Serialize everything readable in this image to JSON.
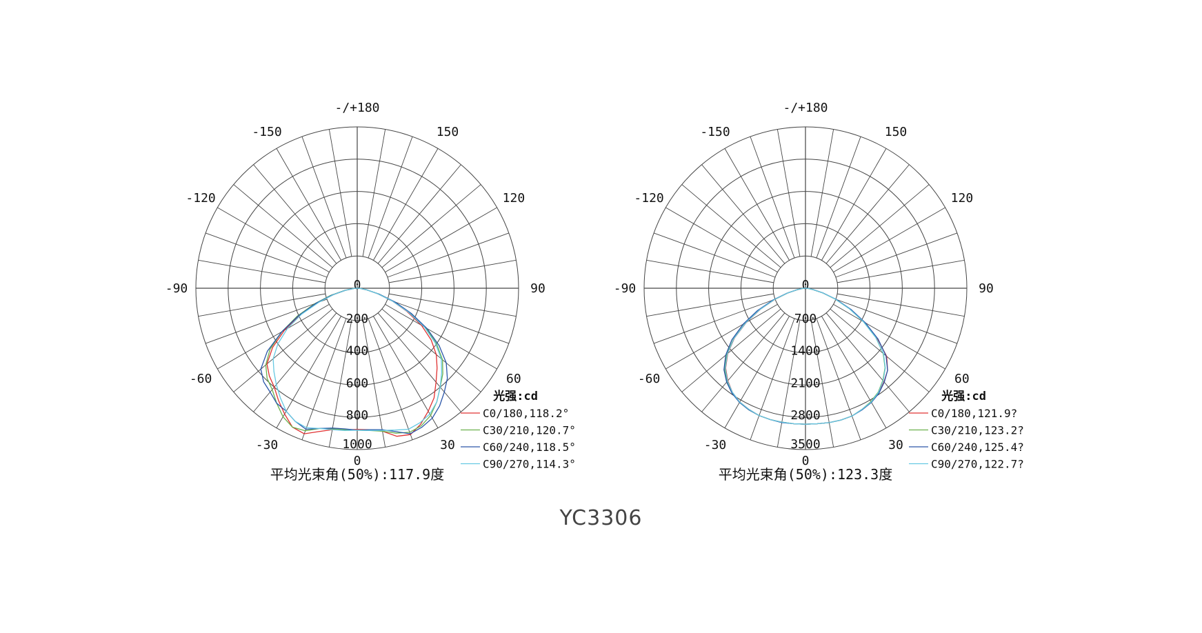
{
  "title": "YC3306",
  "colors": {
    "C0/180": "#e03030",
    "C30/210": "#6ab04c",
    "C60/240": "#2a55a8",
    "C90/270": "#66c8e2",
    "grid": "#444444"
  },
  "chart_data": [
    {
      "type": "polar-line",
      "angle_labels": [
        {
          "angle": 180,
          "text": "-/+180"
        },
        {
          "angle": 150,
          "text": "150"
        },
        {
          "angle": -150,
          "text": "-150"
        },
        {
          "angle": 120,
          "text": "120"
        },
        {
          "angle": -120,
          "text": "-120"
        },
        {
          "angle": 90,
          "text": "90"
        },
        {
          "angle": -90,
          "text": "-90"
        },
        {
          "angle": 60,
          "text": "60"
        },
        {
          "angle": -60,
          "text": "-60"
        },
        {
          "angle": 30,
          "text": "30"
        },
        {
          "angle": -30,
          "text": "-30"
        },
        {
          "angle": 0,
          "text": "0"
        }
      ],
      "angle_grid_step": 10,
      "radial_ticks": [
        200,
        400,
        600,
        800,
        1000
      ],
      "center_label": "0",
      "rmax": 1000,
      "legend_title": "光强:cd",
      "beam_text": "平均光束角(50%):117.9度",
      "gamma": [
        -90,
        -85,
        -80,
        -75,
        -70,
        -65,
        -60,
        -55,
        -50,
        -45,
        -40,
        -35,
        -30,
        -25,
        -20,
        -15,
        -10,
        -5,
        0,
        5,
        10,
        15,
        20,
        25,
        30,
        35,
        40,
        45,
        50,
        55,
        60,
        65,
        70,
        75,
        80,
        85,
        90
      ],
      "series": [
        {
          "name": "C0/180",
          "legend": "C0/180,118.2°",
          "values": [
            0,
            20,
            70,
            150,
            260,
            390,
            520,
            640,
            730,
            770,
            800,
            850,
            900,
            950,
            960,
            920,
            890,
            880,
            875,
            880,
            900,
            950,
            965,
            930,
            880,
            830,
            760,
            700,
            640,
            560,
            460,
            340,
            230,
            130,
            60,
            20,
            0
          ]
        },
        {
          "name": "C30/210",
          "legend": "C30/210,120.7°",
          "values": [
            0,
            25,
            80,
            170,
            280,
            410,
            540,
            660,
            740,
            790,
            820,
            870,
            920,
            950,
            940,
            900,
            885,
            880,
            880,
            885,
            900,
            930,
            950,
            940,
            910,
            860,
            800,
            750,
            690,
            600,
            490,
            360,
            240,
            140,
            60,
            20,
            0
          ]
        },
        {
          "name": "C60/240",
          "legend": "C60/240,118.5°",
          "values": [
            0,
            20,
            75,
            160,
            270,
            400,
            540,
            680,
            780,
            820,
            840,
            870,
            880,
            910,
            930,
            900,
            880,
            875,
            880,
            880,
            890,
            920,
            960,
            950,
            930,
            890,
            840,
            790,
            720,
            620,
            500,
            370,
            250,
            140,
            60,
            20,
            0
          ]
        },
        {
          "name": "C90/270",
          "legend": "C90/270,114.3°",
          "values": [
            0,
            20,
            70,
            150,
            250,
            380,
            500,
            600,
            680,
            730,
            780,
            830,
            880,
            910,
            920,
            900,
            890,
            885,
            880,
            885,
            895,
            910,
            930,
            920,
            900,
            860,
            800,
            740,
            680,
            590,
            480,
            350,
            230,
            130,
            60,
            20,
            0
          ]
        }
      ]
    },
    {
      "type": "polar-line",
      "angle_labels": [
        {
          "angle": 180,
          "text": "-/+180"
        },
        {
          "angle": 150,
          "text": "150"
        },
        {
          "angle": -150,
          "text": "-150"
        },
        {
          "angle": 120,
          "text": "120"
        },
        {
          "angle": -120,
          "text": "-120"
        },
        {
          "angle": 90,
          "text": "90"
        },
        {
          "angle": -90,
          "text": "-90"
        },
        {
          "angle": 60,
          "text": "60"
        },
        {
          "angle": -60,
          "text": "-60"
        },
        {
          "angle": 30,
          "text": "30"
        },
        {
          "angle": -30,
          "text": "-30"
        },
        {
          "angle": 0,
          "text": "0"
        }
      ],
      "angle_grid_step": 10,
      "radial_ticks": [
        700,
        1400,
        2100,
        2800,
        3500
      ],
      "center_label": "0",
      "rmax": 3500,
      "legend_title": "光强:cd",
      "beam_text": "平均光束角(50%):123.3度",
      "gamma": [
        -90,
        -85,
        -80,
        -75,
        -70,
        -65,
        -60,
        -55,
        -50,
        -45,
        -40,
        -35,
        -30,
        -25,
        -20,
        -15,
        -10,
        -5,
        0,
        5,
        10,
        15,
        20,
        25,
        30,
        35,
        40,
        45,
        50,
        55,
        60,
        65,
        70,
        75,
        80,
        85,
        90
      ],
      "series": [
        {
          "name": "C0/180",
          "legend": "C0/180,121.9?",
          "values": [
            0,
            50,
            170,
            390,
            700,
            1080,
            1480,
            1880,
            2200,
            2450,
            2620,
            2760,
            2850,
            2900,
            2940,
            2950,
            2950,
            2950,
            2950,
            2950,
            2960,
            2960,
            2950,
            2900,
            2850,
            2770,
            2650,
            2520,
            2300,
            1900,
            1480,
            1070,
            690,
            380,
            160,
            50,
            0
          ]
        },
        {
          "name": "C30/210",
          "legend": "C30/210,123.2?",
          "values": [
            0,
            55,
            180,
            400,
            720,
            1100,
            1500,
            1900,
            2230,
            2480,
            2640,
            2770,
            2860,
            2910,
            2940,
            2950,
            2950,
            2950,
            2950,
            2950,
            2960,
            2960,
            2950,
            2900,
            2840,
            2750,
            2610,
            2440,
            2200,
            1860,
            1450,
            1050,
            680,
            380,
            160,
            50,
            0
          ]
        },
        {
          "name": "C60/240",
          "legend": "C60/240,125.4?",
          "values": [
            0,
            60,
            190,
            420,
            750,
            1150,
            1560,
            1950,
            2260,
            2500,
            2660,
            2780,
            2860,
            2910,
            2940,
            2950,
            2960,
            2950,
            2950,
            2950,
            2960,
            2960,
            2950,
            2910,
            2860,
            2780,
            2660,
            2520,
            2280,
            1920,
            1500,
            1090,
            710,
            390,
            170,
            55,
            0
          ]
        },
        {
          "name": "C90/270",
          "legend": "C90/270,122.7?",
          "values": [
            0,
            50,
            175,
            395,
            710,
            1090,
            1490,
            1890,
            2210,
            2460,
            2630,
            2760,
            2850,
            2900,
            2940,
            2950,
            2950,
            2950,
            2950,
            2950,
            2960,
            2960,
            2950,
            2900,
            2850,
            2760,
            2620,
            2450,
            2210,
            1860,
            1450,
            1050,
            680,
            380,
            160,
            50,
            0
          ]
        }
      ]
    }
  ]
}
